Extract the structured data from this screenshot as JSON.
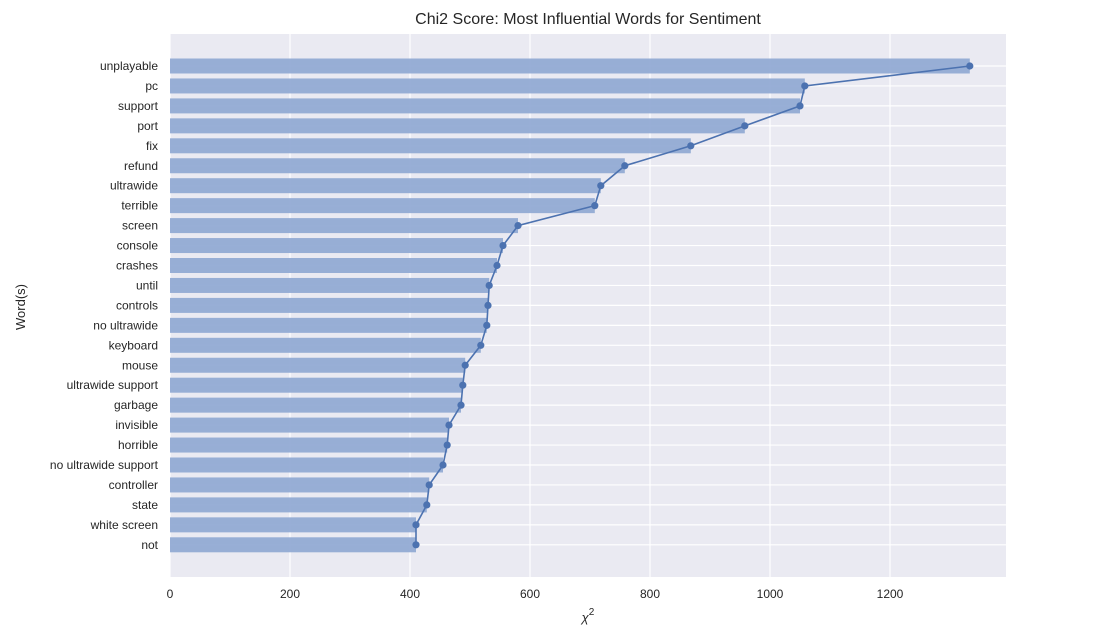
{
  "chart_data": {
    "type": "bar",
    "orientation": "horizontal",
    "title": "Chi2 Score: Most Influential Words for Sentiment",
    "xlabel": "χ",
    "xlabel_superscript": "2",
    "ylabel": "Word(s)",
    "categories": [
      "unplayable",
      "pc",
      "support",
      "port",
      "fix",
      "refund",
      "ultrawide",
      "terrible",
      "screen",
      "console",
      "crashes",
      "until",
      "controls",
      "no ultrawide",
      "keyboard",
      "mouse",
      "ultrawide support",
      "garbage",
      "invisible",
      "horrible",
      "no ultrawide support",
      "controller",
      "state",
      "white screen",
      "not"
    ],
    "values": [
      1333,
      1058,
      1050,
      958,
      868,
      758,
      718,
      708,
      580,
      555,
      545,
      532,
      530,
      528,
      518,
      492,
      488,
      485,
      465,
      462,
      455,
      432,
      428,
      410,
      410
    ],
    "xlim": [
      0,
      1400
    ],
    "xticks": [
      0,
      200,
      400,
      600,
      800,
      1000,
      1200
    ],
    "grid": true,
    "overlay_line": true,
    "colors": {
      "background": "#eaeaf2",
      "bar": "#8fa8d3",
      "line": "#4c72b0",
      "grid": "#ffffff",
      "text": "#262626"
    }
  }
}
